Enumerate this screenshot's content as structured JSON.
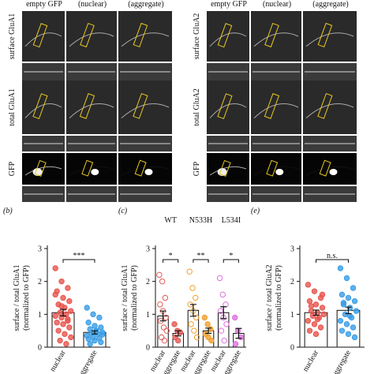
{
  "figure": {
    "image_panels": [
      {
        "columns": [
          "empty GFP",
          "(nuclear)",
          "(aggregate)"
        ],
        "rows": [
          "surface GluA1",
          "total GluA1",
          "GFP"
        ]
      },
      {
        "columns": [
          "empty GFP",
          "(nuclear)",
          "(aggregate)"
        ],
        "rows": [
          "surface GluA2",
          "total GluA2",
          "GFP"
        ]
      }
    ]
  },
  "chart_data": [
    {
      "type": "bar",
      "panel": "(b)",
      "ylabel": [
        "surface / total GluA1",
        "(normalized to GFP)"
      ],
      "ylim": [
        0,
        3
      ],
      "yticks": [
        0,
        1,
        2,
        3
      ],
      "categories": [
        "nuclear",
        "aggregate"
      ],
      "groups": [
        {
          "colors": [
            "#e8554d",
            "#3a9ee6"
          ],
          "point_fill": [
            "filled",
            "filled"
          ],
          "values": [
            1.05,
            0.45
          ],
          "errors": [
            0.1,
            0.05
          ],
          "significance": "***",
          "points": [
            [
              2.4,
              2.0,
              1.8,
              1.7,
              1.5,
              1.4,
              1.3,
              1.2,
              1.1,
              1.05,
              1.0,
              0.95,
              0.9,
              0.8,
              0.75,
              0.7,
              0.6,
              0.5,
              0.4,
              0.3,
              0.2,
              0.1,
              1.6,
              1.25,
              0.85
            ],
            [
              1.2,
              1.0,
              0.9,
              0.75,
              0.65,
              0.6,
              0.55,
              0.5,
              0.45,
              0.42,
              0.4,
              0.35,
              0.3,
              0.28,
              0.25,
              0.2,
              0.15,
              0.1,
              0.5,
              0.38
            ]
          ]
        }
      ]
    },
    {
      "type": "bar",
      "panel": "(c)",
      "ylabel": [
        "surface / total GluA1",
        "(normalized to GFP)"
      ],
      "ylim": [
        0,
        3
      ],
      "yticks": [
        0,
        1,
        2,
        3
      ],
      "categories": [
        "nuclear",
        "aggregate"
      ],
      "groups": [
        {
          "label": "WT",
          "colors": [
            "#e05a55",
            "#e05a55"
          ],
          "point_fill": [
            "open",
            "filled"
          ],
          "values": [
            0.95,
            0.42
          ],
          "errors": [
            0.15,
            0.08
          ],
          "significance": "*",
          "points": [
            [
              2.2,
              2.0,
              1.5,
              1.3,
              1.1,
              0.9,
              0.8,
              0.6,
              0.5,
              0.3,
              0.2
            ],
            [
              0.7,
              0.5,
              0.45,
              0.3,
              0.2
            ]
          ]
        },
        {
          "label": "N533H",
          "colors": [
            "#f0a030",
            "#f0a030"
          ],
          "point_fill": [
            "open",
            "filled"
          ],
          "values": [
            1.12,
            0.5
          ],
          "errors": [
            0.18,
            0.08
          ],
          "significance": "**",
          "points": [
            [
              2.3,
              1.8,
              1.5,
              1.3,
              1.1,
              0.9,
              0.7,
              0.5,
              0.3
            ],
            [
              0.9,
              0.7,
              0.55,
              0.4,
              0.3,
              0.2
            ]
          ]
        },
        {
          "label": "L534I",
          "colors": [
            "#e070e0",
            "#e070e0"
          ],
          "point_fill": [
            "open",
            "filled"
          ],
          "values": [
            1.05,
            0.42
          ],
          "errors": [
            0.18,
            0.15
          ],
          "significance": "*",
          "points": [
            [
              2.1,
              1.6,
              1.3,
              1.1,
              0.9,
              0.7,
              0.5,
              0.2
            ],
            [
              0.9,
              0.5,
              0.3,
              0.1
            ]
          ]
        }
      ]
    },
    {
      "type": "bar",
      "panel": "(e)",
      "ylabel": [
        "surface / total GluA2",
        "(normalized to GFP)"
      ],
      "ylim": [
        0,
        3
      ],
      "yticks": [
        0,
        1,
        2,
        3
      ],
      "categories": [
        "nuclear",
        "aggregate"
      ],
      "groups": [
        {
          "colors": [
            "#e8554d",
            "#3a9ee6"
          ],
          "point_fill": [
            "filled",
            "filled"
          ],
          "values": [
            1.05,
            1.12
          ],
          "errors": [
            0.08,
            0.1
          ],
          "significance": "n.s.",
          "points": [
            [
              1.9,
              1.7,
              1.5,
              1.4,
              1.3,
              1.2,
              1.1,
              1.05,
              1.0,
              0.95,
              0.9,
              0.8,
              0.7,
              0.6,
              0.5,
              0.4,
              1.6,
              1.25,
              0.85
            ],
            [
              2.4,
              2.1,
              1.8,
              1.6,
              1.5,
              1.4,
              1.3,
              1.2,
              1.1,
              1.0,
              0.9,
              0.8,
              0.7,
              0.6,
              0.5,
              0.4,
              0.3,
              1.35,
              0.95
            ]
          ]
        }
      ]
    }
  ]
}
